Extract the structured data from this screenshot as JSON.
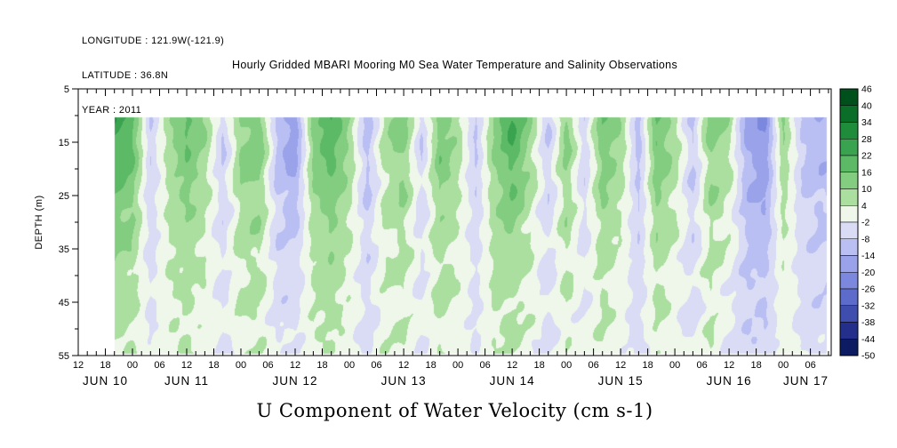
{
  "header": {
    "longitude": "LONGITUDE : 121.9W(-121.9)",
    "latitude": "LATITUDE : 36.8N",
    "year": "YEAR : 2011"
  },
  "chart_data": {
    "type": "heatmap",
    "title": "Hourly Gridded MBARI Mooring M0 Sea Water Temperature and Salinity Observations",
    "xlabel": "U Component of Water Velocity (cm s-1)",
    "ylabel": "DEPTH (m)",
    "y_ticks": [
      5,
      15,
      25,
      35,
      45,
      55
    ],
    "y_range": [
      5,
      55
    ],
    "x_hours_span": 166.6,
    "hour_label_step": 6,
    "x_hour_labels": [
      "12",
      "18",
      "00",
      "06",
      "12",
      "18",
      "00",
      "06",
      "12",
      "18",
      "00",
      "06",
      "12",
      "18",
      "00",
      "06",
      "12",
      "18",
      "00",
      "06",
      "12",
      "18",
      "00",
      "06",
      "12",
      "18",
      "00",
      "06"
    ],
    "day_labels": [
      "JUN 10",
      "JUN 11",
      "JUN 12",
      "JUN 13",
      "JUN 14",
      "JUN 15",
      "JUN 16",
      "JUN 17"
    ],
    "day_centers_h": [
      6,
      24,
      48,
      72,
      96,
      120,
      144,
      161
    ],
    "colorbar": {
      "levels": [
        46,
        40,
        34,
        28,
        22,
        16,
        10,
        4,
        -2,
        -8,
        -14,
        -20,
        -26,
        -32,
        -38,
        -44,
        -50
      ],
      "colors": [
        "#00501c",
        "#0a6e28",
        "#1f8c3b",
        "#3aa350",
        "#5cba66",
        "#82cd80",
        "#abdfa0",
        "#eef7ea",
        "#dadcf6",
        "#b9bff2",
        "#9aa3ea",
        "#7c88dd",
        "#5d6bcb",
        "#3f4daf",
        "#232f8a",
        "#0d1b63"
      ]
    },
    "grid": {
      "t_start_hour": 8,
      "t_step_hours": 4,
      "depth_start": 10,
      "depth_step": 6,
      "depth_top_plotted": 10.3,
      "depth_bottom_plotted": 54.7,
      "values": [
        [
          26,
          20,
          -8,
          8,
          18,
          10,
          -8,
          12,
          16,
          -10,
          -20,
          14,
          22,
          10,
          -12,
          8,
          14,
          -8,
          16,
          8,
          -10,
          12,
          24,
          10,
          -8,
          14,
          -8,
          16,
          10,
          -12,
          18,
          8,
          -10,
          14,
          8,
          -16,
          -22,
          12,
          -8,
          -14
        ],
        [
          22,
          17,
          -8,
          7,
          16,
          9,
          -8,
          11,
          14,
          -10,
          -18,
          12,
          20,
          9,
          -11,
          7,
          12,
          -7,
          14,
          7,
          -9,
          11,
          21,
          9,
          -8,
          12,
          -7,
          14,
          9,
          -11,
          16,
          7,
          -9,
          12,
          7,
          -15,
          -20,
          10,
          -8,
          -13
        ],
        [
          18,
          14,
          -7,
          6,
          13,
          7,
          -7,
          9,
          12,
          -9,
          -14,
          10,
          16,
          7,
          -10,
          6,
          10,
          -6,
          12,
          6,
          -8,
          9,
          17,
          7,
          -7,
          10,
          -6,
          12,
          7,
          -10,
          13,
          6,
          -8,
          10,
          5,
          -13,
          -17,
          8,
          -7,
          -11
        ],
        [
          14,
          11,
          -6,
          5,
          10,
          5,
          -6,
          7,
          9,
          -7,
          -11,
          8,
          12,
          5,
          -8,
          5,
          8,
          -5,
          9,
          4,
          -6,
          7,
          13,
          5,
          -6,
          8,
          -5,
          9,
          5,
          -8,
          10,
          4,
          -7,
          8,
          3,
          -11,
          -14,
          6,
          -6,
          -9
        ],
        [
          11,
          9,
          -5,
          4,
          8,
          4,
          -5,
          6,
          7,
          -6,
          -8,
          6,
          10,
          4,
          -6,
          4,
          6,
          -4,
          7,
          3,
          -5,
          6,
          10,
          4,
          -5,
          6,
          -4,
          7,
          3,
          -7,
          8,
          3,
          -5,
          6,
          2,
          -9,
          -11,
          4,
          -5,
          -8
        ],
        [
          9,
          7,
          -4,
          4,
          6,
          3,
          -4,
          5,
          6,
          -5,
          -6,
          5,
          8,
          3,
          -5,
          3,
          5,
          -3,
          6,
          3,
          -4,
          5,
          8,
          3,
          -5,
          5,
          -3,
          6,
          2,
          -6,
          6,
          2,
          -4,
          5,
          0,
          -8,
          -9,
          3,
          -4,
          -7
        ],
        [
          7,
          6,
          -3,
          3,
          5,
          2,
          -3,
          4,
          5,
          -4,
          -5,
          4,
          6,
          2,
          -5,
          3,
          4,
          -2,
          5,
          2,
          -4,
          4,
          6,
          2,
          -4,
          4,
          -2,
          5,
          1,
          -5,
          5,
          1,
          -4,
          4,
          -2,
          -7,
          -8,
          2,
          -4,
          -6
        ],
        [
          6,
          5,
          -3,
          3,
          4,
          1,
          -3,
          3,
          4,
          -3,
          -4,
          3,
          5,
          1,
          -4,
          2,
          3,
          -2,
          4,
          1,
          -3,
          3,
          5,
          1,
          -3,
          3,
          -2,
          4,
          0,
          -5,
          4,
          0,
          -3,
          3,
          -3,
          -6,
          -7,
          1,
          -3,
          -5
        ]
      ]
    }
  }
}
